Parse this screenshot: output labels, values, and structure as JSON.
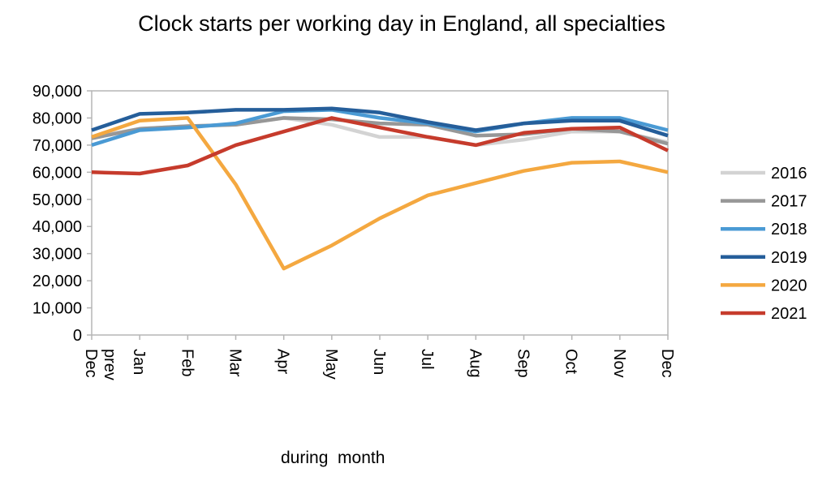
{
  "chart_data": {
    "type": "line",
    "title": "Clock starts per working day in England, all specialties",
    "xlabel": "during  month",
    "ylabel": "",
    "categories": [
      "Dec prev",
      "Jan",
      "Feb",
      "Mar",
      "Apr",
      "May",
      "Jun",
      "Jul",
      "Aug",
      "Sep",
      "Oct",
      "Nov",
      "Dec"
    ],
    "y_ticks": [
      "0",
      "10,000",
      "20,000",
      "30,000",
      "40,000",
      "50,000",
      "60,000",
      "70,000",
      "80,000",
      "90,000"
    ],
    "ylim": [
      0,
      90000
    ],
    "grid": false,
    "legend_position": "right",
    "series": [
      {
        "name": "2016",
        "color": "#d3d3d3",
        "values": [
          73000,
          76000,
          77000,
          77500,
          80000,
          77500,
          73000,
          73000,
          70000,
          72000,
          75000,
          75000,
          71000
        ]
      },
      {
        "name": "2017",
        "color": "#979797",
        "values": [
          72500,
          76000,
          77000,
          77500,
          80000,
          79500,
          78000,
          77500,
          73500,
          74000,
          76000,
          75000,
          70500
        ]
      },
      {
        "name": "2018",
        "color": "#4a9ad4",
        "values": [
          70000,
          75500,
          76500,
          78000,
          82500,
          83000,
          80000,
          78000,
          75000,
          78000,
          80000,
          80000,
          75500
        ]
      },
      {
        "name": "2019",
        "color": "#255e9a",
        "values": [
          75500,
          81500,
          82000,
          83000,
          83000,
          83500,
          82000,
          78500,
          75500,
          78000,
          79000,
          79000,
          73500
        ]
      },
      {
        "name": "2020",
        "color": "#f4a840",
        "values": [
          73000,
          79000,
          80000,
          55500,
          24500,
          33000,
          43000,
          51500,
          56000,
          60500,
          63500,
          64000,
          60000
        ]
      },
      {
        "name": "2021",
        "color": "#c63b2c",
        "values": [
          60000,
          59500,
          62500,
          70000,
          75000,
          80000,
          76500,
          73000,
          70000,
          74500,
          76000,
          76500,
          68000
        ]
      }
    ]
  }
}
